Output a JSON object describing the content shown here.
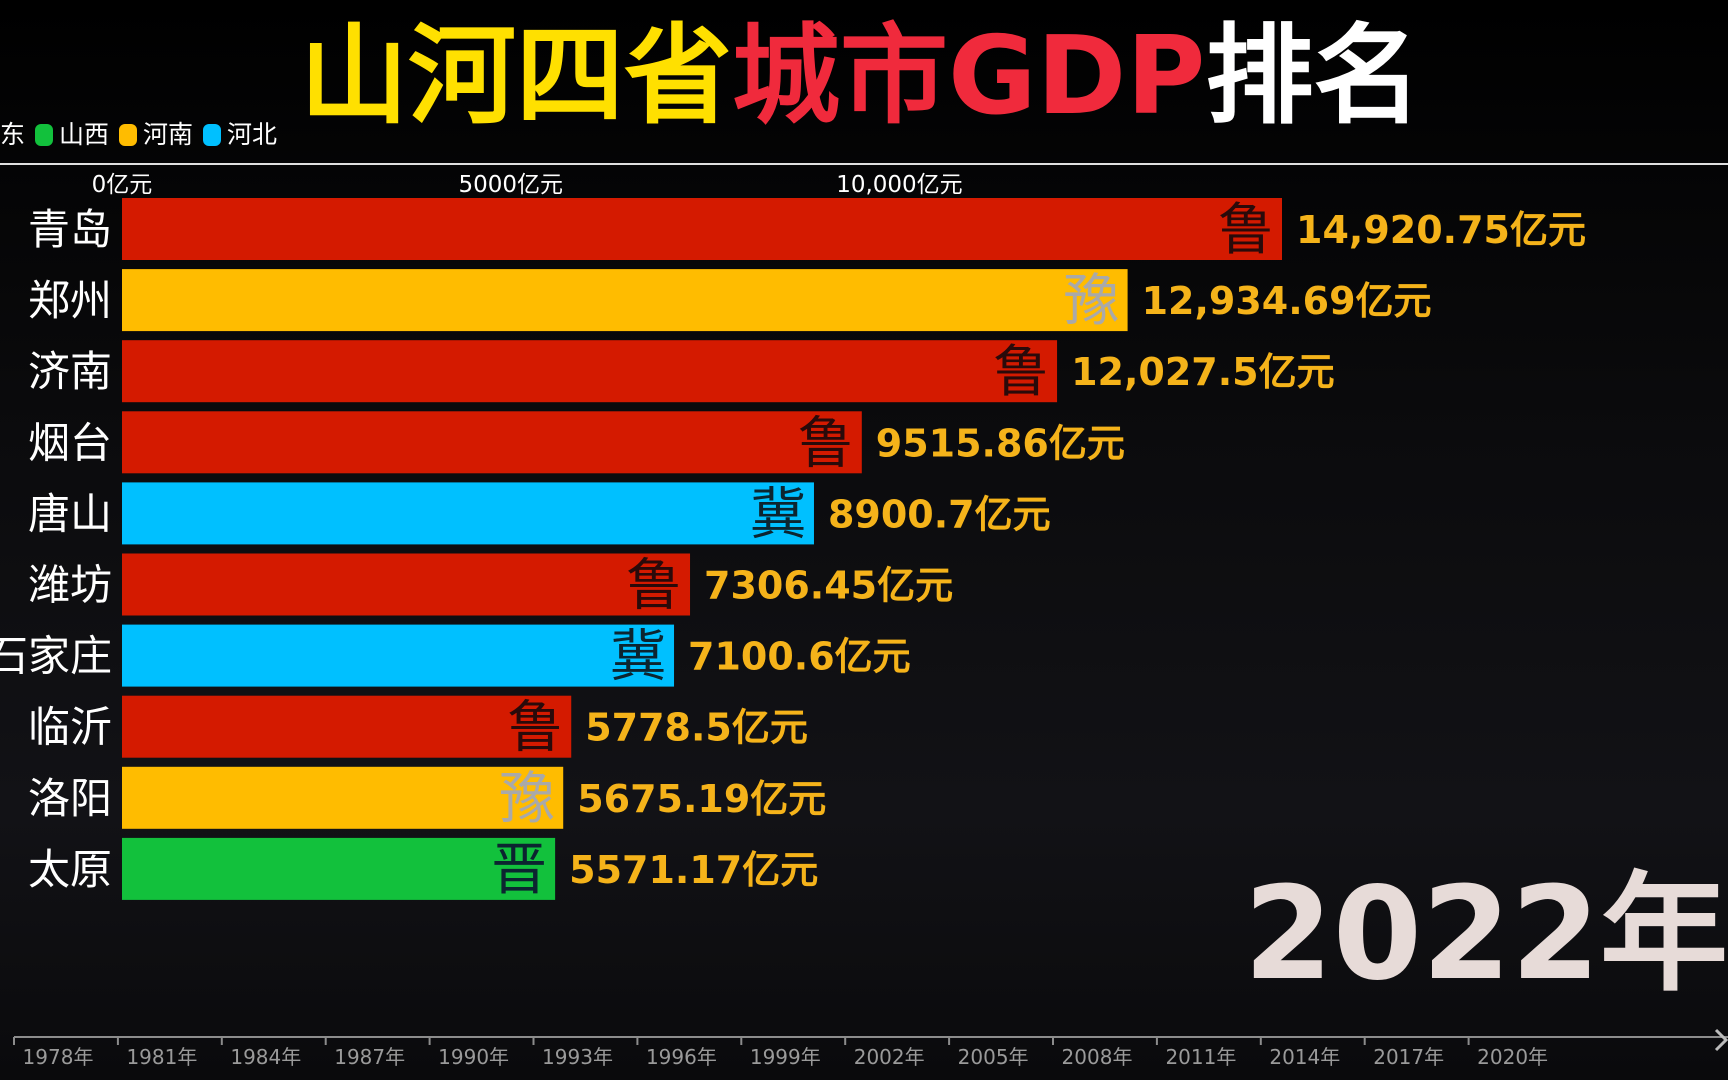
{
  "title": {
    "part1": "山河四省",
    "part2": "城市GDP",
    "part3": "排名",
    "color1": "#ffe000",
    "color2": "#f02a3c",
    "color3": "#ffffff"
  },
  "legend": [
    {
      "label": "东",
      "color": ""
    },
    {
      "label": "山西",
      "color": "#12c13c"
    },
    {
      "label": "河南",
      "color": "#ffbc00"
    },
    {
      "label": "河北",
      "color": "#00c0ff"
    }
  ],
  "year": "2022年",
  "chart_data": {
    "type": "bar",
    "orientation": "horizontal",
    "x_ticks": [
      {
        "value": 0,
        "label": "0亿元"
      },
      {
        "value": 5000,
        "label": "5000亿元"
      },
      {
        "value": 10000,
        "label": "10,000亿元"
      }
    ],
    "series_colors": {
      "山东": "#d41a00",
      "河南": "#ffbc00",
      "河北": "#00c0ff",
      "山西": "#12c13c"
    },
    "bars": [
      {
        "category": "青岛",
        "value": 14920.75,
        "value_label": "14,920.75亿元",
        "province": "山东",
        "abbr": "鲁"
      },
      {
        "category": "郑州",
        "value": 12934.69,
        "value_label": "12,934.69亿元",
        "province": "河南",
        "abbr": "豫"
      },
      {
        "category": "济南",
        "value": 12027.5,
        "value_label": "12,027.5亿元",
        "province": "山东",
        "abbr": "鲁"
      },
      {
        "category": "烟台",
        "value": 9515.86,
        "value_label": "9515.86亿元",
        "province": "山东",
        "abbr": "鲁"
      },
      {
        "category": "唐山",
        "value": 8900.7,
        "value_label": "8900.7亿元",
        "province": "河北",
        "abbr": "冀"
      },
      {
        "category": "潍坊",
        "value": 7306.45,
        "value_label": "7306.45亿元",
        "province": "山东",
        "abbr": "鲁"
      },
      {
        "category": "石家庄",
        "value": 7100.6,
        "value_label": "7100.6亿元",
        "province": "河北",
        "abbr": "冀"
      },
      {
        "category": "临沂",
        "value": 5778.5,
        "value_label": "5778.5亿元",
        "province": "山东",
        "abbr": "鲁"
      },
      {
        "category": "洛阳",
        "value": 5675.19,
        "value_label": "5675.19亿元",
        "province": "河南",
        "abbr": "豫"
      },
      {
        "category": "太原",
        "value": 5571.17,
        "value_label": "5571.17亿元",
        "province": "山西",
        "abbr": "晋"
      }
    ],
    "timeline": {
      "labels": [
        "1978年",
        "1981年",
        "1984年",
        "1987年",
        "1990年",
        "1993年",
        "1996年",
        "1999年",
        "2002年",
        "2005年",
        "2008年",
        "2011年",
        "2014年",
        "2017年",
        "2020年"
      ],
      "current_year": "2022年"
    }
  }
}
